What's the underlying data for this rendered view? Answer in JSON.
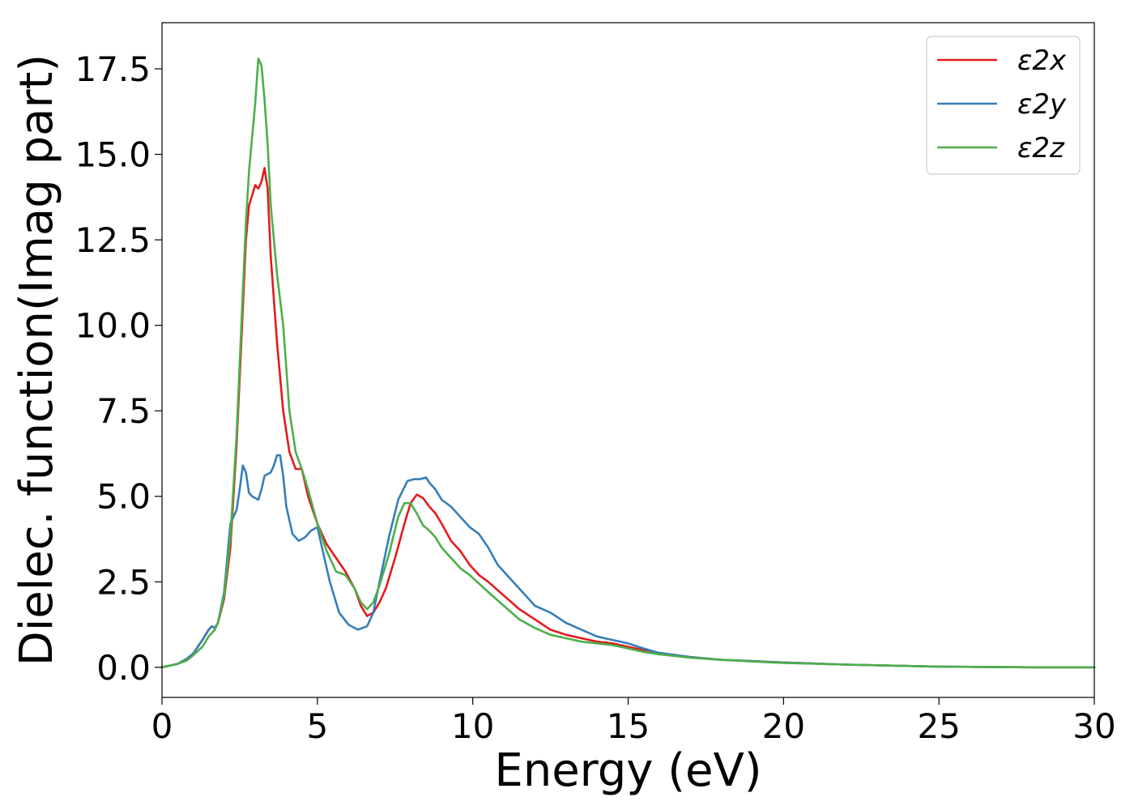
{
  "chart_data": {
    "type": "line",
    "xlabel": "Energy (eV)",
    "ylabel": "Dielec. function(Imag part)",
    "xlim": [
      0,
      30
    ],
    "ylim": [
      -0.88,
      18.85
    ],
    "xticks": [
      0,
      5,
      10,
      15,
      20,
      25,
      30
    ],
    "xtick_labels": [
      "0",
      "5",
      "10",
      "15",
      "20",
      "25",
      "30"
    ],
    "yticks": [
      0.0,
      2.5,
      5.0,
      7.5,
      10.0,
      12.5,
      15.0,
      17.5
    ],
    "ytick_labels": [
      "0.0",
      "2.5",
      "5.0",
      "7.5",
      "10.0",
      "12.5",
      "15.0",
      "17.5"
    ],
    "grid": false,
    "legend_position": "top-right",
    "series": [
      {
        "name": "ε2x",
        "color": "#e41a1c",
        "x": [
          0,
          0.5,
          0.8,
          1.0,
          1.3,
          1.5,
          1.6,
          1.7,
          1.8,
          2.0,
          2.2,
          2.4,
          2.6,
          2.7,
          2.8,
          3.0,
          3.1,
          3.2,
          3.3,
          3.4,
          3.5,
          3.7,
          3.9,
          4.1,
          4.3,
          4.5,
          4.7,
          5.0,
          5.3,
          5.6,
          5.9,
          6.2,
          6.4,
          6.6,
          6.8,
          7.0,
          7.2,
          7.5,
          7.8,
          8.0,
          8.2,
          8.4,
          8.6,
          8.8,
          9.0,
          9.3,
          9.6,
          9.9,
          10.2,
          10.5,
          11.0,
          11.5,
          12.0,
          12.5,
          13.0,
          13.5,
          14.0,
          14.5,
          15.0,
          15.5,
          16,
          17,
          18,
          19,
          20,
          22,
          25,
          28,
          30
        ],
        "values": [
          0.0,
          0.1,
          0.25,
          0.4,
          0.8,
          1.1,
          1.2,
          1.15,
          1.3,
          2.0,
          3.5,
          6.5,
          10.5,
          12.5,
          13.5,
          14.1,
          14.0,
          14.2,
          14.6,
          14.0,
          12.0,
          9.5,
          7.5,
          6.3,
          5.8,
          5.8,
          5.0,
          4.2,
          3.6,
          3.2,
          2.8,
          2.3,
          1.8,
          1.5,
          1.6,
          1.9,
          2.3,
          3.2,
          4.2,
          4.8,
          5.05,
          4.95,
          4.7,
          4.5,
          4.2,
          3.7,
          3.4,
          3.0,
          2.7,
          2.5,
          2.1,
          1.7,
          1.4,
          1.1,
          0.95,
          0.85,
          0.75,
          0.7,
          0.6,
          0.5,
          0.42,
          0.3,
          0.22,
          0.18,
          0.14,
          0.08,
          0.02,
          0.0,
          0.0
        ]
      },
      {
        "name": "ε2y",
        "color": "#377eb8",
        "x": [
          0,
          0.5,
          0.8,
          1.0,
          1.3,
          1.5,
          1.6,
          1.7,
          1.8,
          2.0,
          2.2,
          2.4,
          2.5,
          2.6,
          2.7,
          2.8,
          2.9,
          3.1,
          3.2,
          3.3,
          3.5,
          3.6,
          3.7,
          3.8,
          3.9,
          4.0,
          4.2,
          4.4,
          4.6,
          4.8,
          5.0,
          5.2,
          5.4,
          5.7,
          6.0,
          6.3,
          6.6,
          6.8,
          7.0,
          7.3,
          7.6,
          7.9,
          8.1,
          8.3,
          8.5,
          8.6,
          8.8,
          9.0,
          9.3,
          9.6,
          9.9,
          10.2,
          10.5,
          10.8,
          11.2,
          11.6,
          12.0,
          12.5,
          13.0,
          13.5,
          14.0,
          14.5,
          15.0,
          15.5,
          16,
          17,
          18,
          19,
          20,
          22,
          25,
          28,
          30
        ],
        "values": [
          0.0,
          0.1,
          0.25,
          0.4,
          0.8,
          1.1,
          1.2,
          1.15,
          1.3,
          2.2,
          4.2,
          4.6,
          5.2,
          5.9,
          5.7,
          5.1,
          5.0,
          4.9,
          5.2,
          5.6,
          5.7,
          5.9,
          6.2,
          6.2,
          5.6,
          4.7,
          3.9,
          3.7,
          3.8,
          4.0,
          4.1,
          3.3,
          2.5,
          1.6,
          1.25,
          1.1,
          1.2,
          1.6,
          2.5,
          3.8,
          4.9,
          5.45,
          5.5,
          5.5,
          5.55,
          5.4,
          5.2,
          4.9,
          4.7,
          4.4,
          4.1,
          3.9,
          3.5,
          3.0,
          2.6,
          2.2,
          1.8,
          1.6,
          1.3,
          1.1,
          0.9,
          0.8,
          0.7,
          0.55,
          0.42,
          0.3,
          0.22,
          0.18,
          0.14,
          0.08,
          0.02,
          0.0,
          0.0
        ]
      },
      {
        "name": "ε2z",
        "color": "#4daf4a",
        "x": [
          0,
          0.5,
          0.8,
          1.0,
          1.3,
          1.5,
          1.6,
          1.7,
          1.8,
          2.0,
          2.2,
          2.4,
          2.6,
          2.7,
          2.8,
          3.0,
          3.1,
          3.2,
          3.3,
          3.4,
          3.5,
          3.7,
          3.9,
          4.1,
          4.3,
          4.5,
          4.7,
          5.0,
          5.3,
          5.6,
          5.9,
          6.2,
          6.4,
          6.6,
          6.8,
          7.0,
          7.3,
          7.6,
          7.8,
          8.0,
          8.2,
          8.4,
          8.6,
          8.8,
          9.0,
          9.3,
          9.6,
          9.9,
          10.2,
          10.5,
          11.0,
          11.5,
          12.0,
          12.5,
          13.0,
          13.5,
          14.0,
          14.5,
          15.0,
          15.5,
          16,
          17,
          18,
          19,
          20,
          22,
          25,
          28,
          30
        ],
        "values": [
          0.0,
          0.1,
          0.2,
          0.35,
          0.6,
          0.9,
          1.0,
          1.1,
          1.3,
          2.1,
          3.8,
          6.8,
          11.0,
          13.0,
          14.5,
          16.5,
          17.8,
          17.6,
          16.6,
          15.3,
          13.5,
          11.5,
          10.0,
          7.5,
          6.3,
          5.8,
          5.2,
          4.2,
          3.4,
          2.8,
          2.7,
          2.3,
          1.9,
          1.7,
          1.9,
          2.4,
          3.3,
          4.4,
          4.8,
          4.8,
          4.5,
          4.15,
          4.0,
          3.8,
          3.5,
          3.2,
          2.9,
          2.7,
          2.45,
          2.2,
          1.8,
          1.4,
          1.15,
          0.95,
          0.85,
          0.75,
          0.7,
          0.65,
          0.55,
          0.45,
          0.38,
          0.28,
          0.22,
          0.17,
          0.13,
          0.08,
          0.02,
          0.0,
          0.0
        ]
      }
    ]
  }
}
